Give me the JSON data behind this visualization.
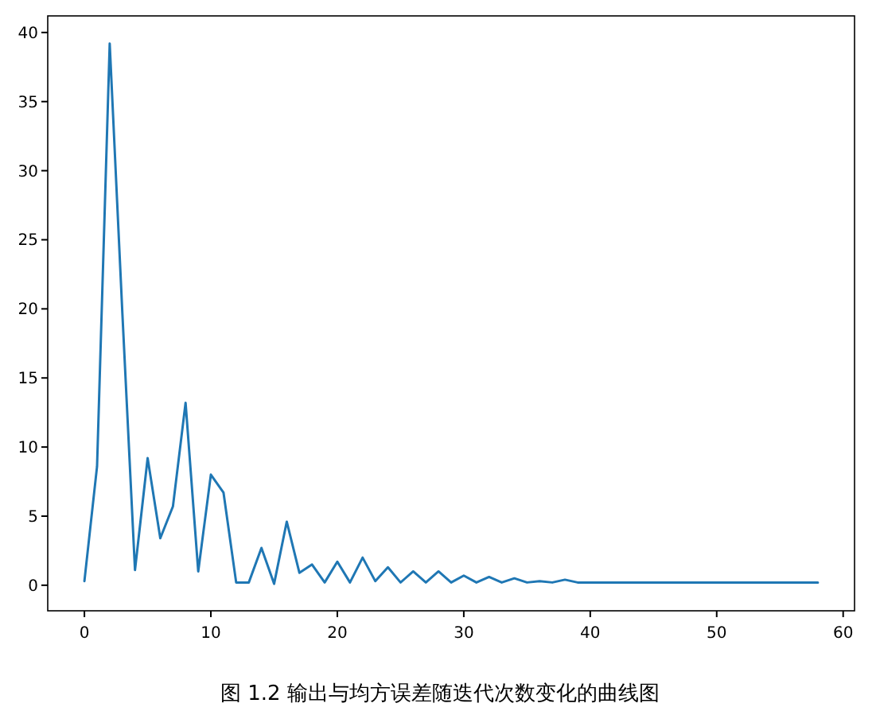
{
  "chart_data": {
    "type": "line",
    "title": "图 1.2 输出与均方误差随迭代次数变化的曲线图",
    "x": [
      0,
      1,
      2,
      3,
      4,
      5,
      6,
      7,
      8,
      9,
      10,
      11,
      12,
      13,
      14,
      15,
      16,
      17,
      18,
      19,
      20,
      21,
      22,
      23,
      24,
      25,
      26,
      27,
      28,
      29,
      30,
      31,
      32,
      33,
      34,
      35,
      36,
      37,
      38,
      39,
      40,
      41,
      42,
      43,
      44,
      45,
      46,
      47,
      48,
      49,
      50,
      51,
      52,
      53,
      54,
      55,
      56,
      57,
      58
    ],
    "series": [
      {
        "color": "#1f77b4",
        "values": [
          0.3,
          8.6,
          39.2,
          19.7,
          1.1,
          9.2,
          3.4,
          5.7,
          13.2,
          1.0,
          8.0,
          6.7,
          0.2,
          0.2,
          2.7,
          0.1,
          4.6,
          0.9,
          1.5,
          0.2,
          1.7,
          0.2,
          2.0,
          0.3,
          1.3,
          0.2,
          1.0,
          0.2,
          1.0,
          0.2,
          0.7,
          0.2,
          0.6,
          0.2,
          0.5,
          0.2,
          0.3,
          0.2,
          0.4,
          0.2,
          0.2,
          0.2,
          0.2,
          0.2,
          0.2,
          0.2,
          0.2,
          0.2,
          0.2,
          0.2,
          0.2,
          0.2,
          0.2,
          0.2,
          0.2,
          0.2,
          0.2,
          0.2,
          0.2
        ]
      }
    ],
    "xlim": [
      -2.9,
      60.9
    ],
    "ylim": [
      -1.85,
      41.2
    ],
    "xticks": [
      0,
      10,
      20,
      30,
      40,
      50,
      60
    ],
    "yticks": [
      0,
      5,
      10,
      15,
      20,
      25,
      30,
      35,
      40
    ],
    "marker": "none",
    "line_style": "solid"
  }
}
